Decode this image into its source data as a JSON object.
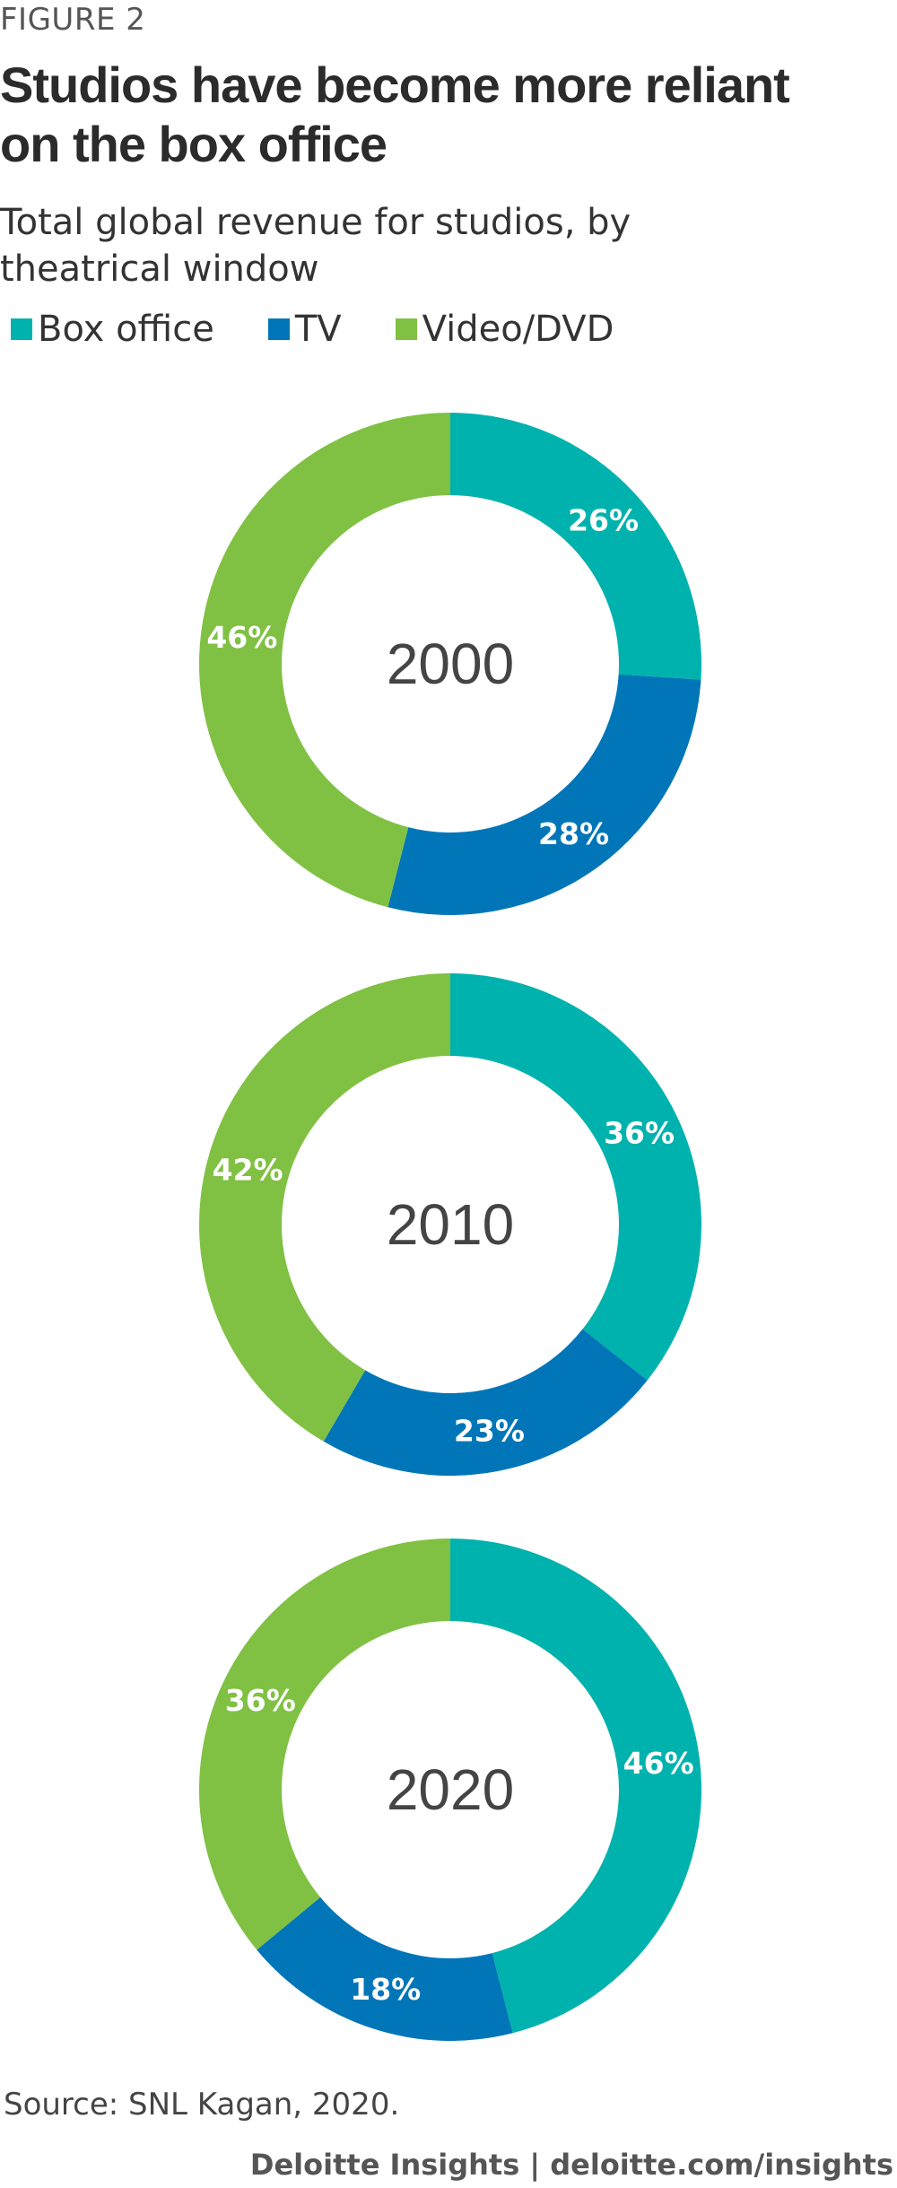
{
  "figure_label": "FIGURE 2",
  "title": "Studios have become more reliant on the box office",
  "subtitle": "Total global revenue for studios, by theatrical window",
  "legend": [
    {
      "label": "Box office",
      "color": "#00b2ad"
    },
    {
      "label": "TV",
      "color": "#0076b8"
    },
    {
      "label": "Video/DVD",
      "color": "#80c144"
    }
  ],
  "chart_data": [
    {
      "type": "pie",
      "center_label": "2000",
      "categories": [
        "Box office",
        "TV",
        "Video/DVD"
      ],
      "values": [
        26,
        28,
        46
      ],
      "value_labels": [
        "26%",
        "28%",
        "46%"
      ]
    },
    {
      "type": "pie",
      "center_label": "2010",
      "categories": [
        "Box office",
        "TV",
        "Video/DVD"
      ],
      "values": [
        36,
        23,
        42
      ],
      "value_labels": [
        "36%",
        "23%",
        "42%"
      ]
    },
    {
      "type": "pie",
      "center_label": "2020",
      "categories": [
        "Box office",
        "TV",
        "Video/DVD"
      ],
      "values": [
        46,
        18,
        36
      ],
      "value_labels": [
        "46%",
        "18%",
        "36%"
      ]
    }
  ],
  "source": "Source: SNL Kagan, 2020.",
  "credit": "Deloitte Insights | deloitte.com/insights"
}
